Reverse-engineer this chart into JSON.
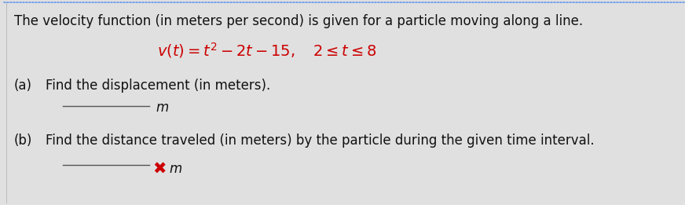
{
  "background_color": "#e0e0e0",
  "title_text": "The velocity function (in meters per second) is given for a particle moving along a line.",
  "equation_red": "v(t) = t² − 2t − 15,   2 ≤ t ≤ 8",
  "part_a_label": "(a)",
  "part_a_text": "Find the displacement (in meters).",
  "part_b_label": "(b)",
  "part_b_text": "Find the distance traveled (in meters) by the particle during the given time interval.",
  "unit_m": "m",
  "x_mark": "✖",
  "dot_color": "#6495ed",
  "red_color": "#cc0000",
  "text_color": "#111111",
  "white": "#ffffff",
  "title_fontsize": 12,
  "body_fontsize": 12,
  "eq_fontsize": 13
}
